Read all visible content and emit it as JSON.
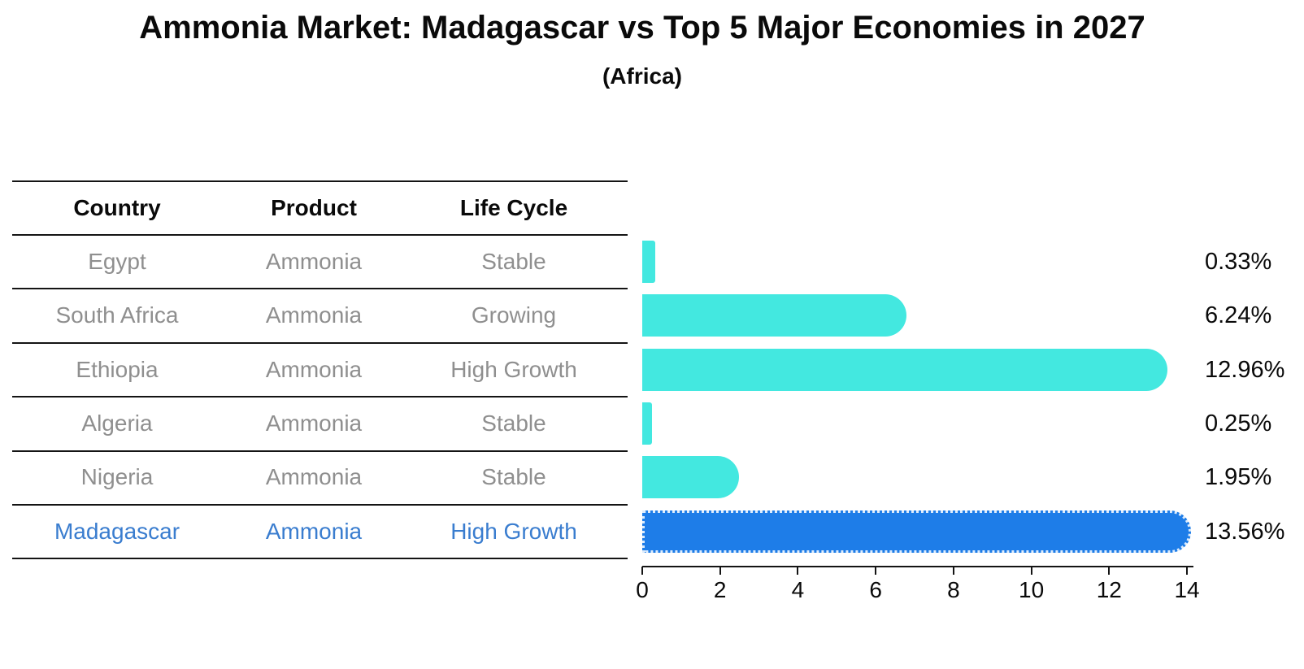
{
  "title": "Ammonia Market: Madagascar vs Top 5 Major Economies in 2027",
  "subtitle": "(Africa)",
  "table": {
    "columns": [
      "Country",
      "Product",
      "Life Cycle"
    ],
    "rows": [
      {
        "country": "Egypt",
        "product": "Ammonia",
        "life_cycle": "Stable",
        "highlight": false
      },
      {
        "country": "South Africa",
        "product": "Ammonia",
        "life_cycle": "Growing",
        "highlight": false
      },
      {
        "country": "Ethiopia",
        "product": "Ammonia",
        "life_cycle": "High Growth",
        "highlight": false
      },
      {
        "country": "Algeria",
        "product": "Ammonia",
        "life_cycle": "Stable",
        "highlight": false
      },
      {
        "country": "Nigeria",
        "product": "Ammonia",
        "life_cycle": "Stable",
        "highlight": false
      },
      {
        "country": "Madagascar",
        "product": "Ammonia",
        "life_cycle": "High Growth",
        "highlight": true
      }
    ]
  },
  "chart_data": {
    "type": "bar",
    "orientation": "horizontal",
    "title": "Ammonia Market: Madagascar vs Top 5 Major Economies in 2027",
    "subtitle": "(Africa)",
    "categories": [
      "Egypt",
      "South Africa",
      "Ethiopia",
      "Algeria",
      "Nigeria",
      "Madagascar"
    ],
    "values": [
      0.33,
      6.24,
      12.96,
      0.25,
      1.95,
      13.56
    ],
    "value_labels": [
      "0.33%",
      "6.24%",
      "12.96%",
      "0.25%",
      "1.95%",
      "13.56%"
    ],
    "xlabel": "",
    "ylabel": "",
    "xlim": [
      0,
      14.2
    ],
    "xticks": [
      0,
      2,
      4,
      6,
      8,
      10,
      12,
      14
    ],
    "grid": false,
    "legend": false,
    "highlight_index": 5,
    "highlight_edge_style": "dotted"
  },
  "colors": {
    "bar_default": "#43e8e0",
    "bar_highlight": "#1e7de8",
    "header_text": "#0a0a0a",
    "row_text": "#8f8f8f",
    "highlight_text": "#3a7dcf",
    "axis": "#141414"
  }
}
